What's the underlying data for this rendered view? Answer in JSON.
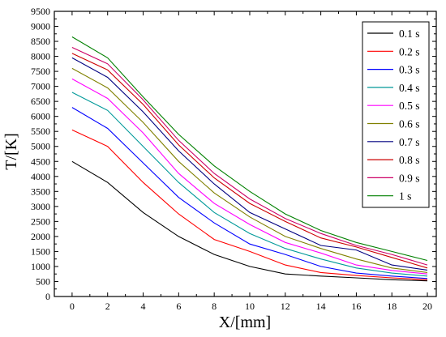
{
  "chart_data": {
    "type": "line",
    "xlabel": "X/[mm]",
    "ylabel": "T/[K]",
    "xlim": [
      -1,
      20.5
    ],
    "ylim": [
      0,
      9500
    ],
    "x": [
      0,
      2,
      4,
      6,
      8,
      10,
      12,
      14,
      16,
      18,
      20
    ],
    "xticks": [
      "0",
      "2",
      "4",
      "6",
      "8",
      "10",
      "12",
      "14",
      "16",
      "18",
      "20"
    ],
    "yticks": [
      "0",
      "500",
      "1000",
      "1500",
      "2000",
      "2500",
      "3000",
      "3500",
      "4000",
      "4500",
      "5000",
      "5500",
      "6000",
      "6500",
      "7000",
      "7500",
      "8000",
      "8500",
      "9000",
      "9500"
    ],
    "grid": false,
    "legend_position": "top-right",
    "series": [
      {
        "name": "0.1 s",
        "color": "#000000",
        "values": [
          4500,
          3800,
          2800,
          2000,
          1400,
          1000,
          750,
          680,
          620,
          560,
          520
        ]
      },
      {
        "name": "0.2 s",
        "color": "#ff0000",
        "values": [
          5550,
          5000,
          3800,
          2750,
          1900,
          1500,
          1050,
          800,
          700,
          620,
          560
        ]
      },
      {
        "name": "0.3 s",
        "color": "#0000ff",
        "values": [
          6300,
          5600,
          4450,
          3300,
          2450,
          1750,
          1400,
          1000,
          780,
          680,
          600
        ]
      },
      {
        "name": "0.4 s",
        "color": "#009999",
        "values": [
          6800,
          6200,
          5000,
          3800,
          2800,
          2100,
          1600,
          1250,
          950,
          780,
          680
        ]
      },
      {
        "name": "0.5 s",
        "color": "#ff00ff",
        "values": [
          7250,
          6600,
          5450,
          4100,
          3100,
          2400,
          1800,
          1450,
          1050,
          870,
          750
        ]
      },
      {
        "name": "0.6 s",
        "color": "#808000",
        "values": [
          7600,
          6950,
          5800,
          4500,
          3450,
          2650,
          2000,
          1600,
          1250,
          950,
          800
        ]
      },
      {
        "name": "0.7 s",
        "color": "#000080",
        "values": [
          7950,
          7300,
          6150,
          4850,
          3750,
          2800,
          2250,
          1700,
          1550,
          1050,
          880
        ]
      },
      {
        "name": "0.8 s",
        "color": "#cc0000",
        "values": [
          8100,
          7550,
          6400,
          5050,
          3950,
          3100,
          2500,
          1950,
          1650,
          1300,
          950
        ]
      },
      {
        "name": "0.9 s",
        "color": "#cc0066",
        "values": [
          8300,
          7750,
          6550,
          5200,
          4100,
          3250,
          2600,
          2100,
          1700,
          1400,
          1050
        ]
      },
      {
        "name": "1 s",
        "color": "#008000",
        "values": [
          8650,
          7950,
          6650,
          5400,
          4350,
          3500,
          2750,
          2200,
          1800,
          1500,
          1200
        ]
      }
    ]
  }
}
